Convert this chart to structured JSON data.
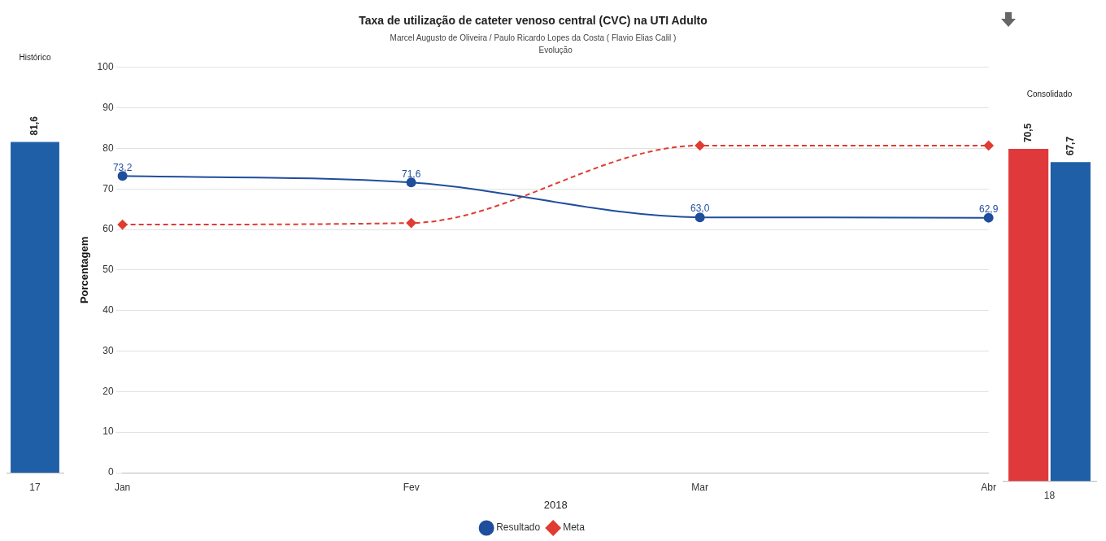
{
  "chart_data": [
    {
      "type": "bar",
      "title": "Histórico",
      "categories": [
        "17"
      ],
      "values": [
        81.6
      ],
      "value_labels": [
        "81,6"
      ],
      "color": "#1f5fa8",
      "ylim": [
        0,
        100
      ],
      "tick_labels": "x"
    },
    {
      "type": "line",
      "title": "Taxa de utilização de cateter venoso central (CVC) na UTI Adulto",
      "subtitle": "Marcel Augusto de Oliveira / Paulo Ricardo Lopes da Costa ( Flavio Elias Calil )",
      "annotations": [
        "Evolução"
      ],
      "categories": [
        "Jan",
        "Fev",
        "Mar",
        "Abr"
      ],
      "xlabel": "2018",
      "ylabel": "Porcentagem",
      "ylim": [
        0,
        100
      ],
      "yticks": [
        0,
        10,
        20,
        30,
        40,
        50,
        60,
        70,
        80,
        90,
        100
      ],
      "grid": "y",
      "legend": "bottom",
      "series": [
        {
          "name": "Resultado",
          "color": "#1f4e9c",
          "values": [
            73.2,
            71.6,
            63.0,
            62.9
          ],
          "value_labels": [
            "73,2",
            "71,6",
            "63,0",
            "62,9"
          ],
          "marker": "circle",
          "line_style": "solid"
        },
        {
          "name": "Meta",
          "color": "#e03c31",
          "values": [
            61.2,
            61.6,
            80.7,
            80.7
          ],
          "marker": "diamond",
          "line_style": "dashed"
        }
      ]
    },
    {
      "type": "bar",
      "title": "Consolidado",
      "categories": [
        "18"
      ],
      "tick_labels": "x",
      "series": [
        {
          "color": "#e0393b",
          "values": [
            70.5
          ],
          "value_labels": [
            "70,5"
          ]
        },
        {
          "color": "#1f5fa8",
          "values": [
            67.7
          ],
          "value_labels": [
            "67,7"
          ]
        }
      ]
    }
  ]
}
